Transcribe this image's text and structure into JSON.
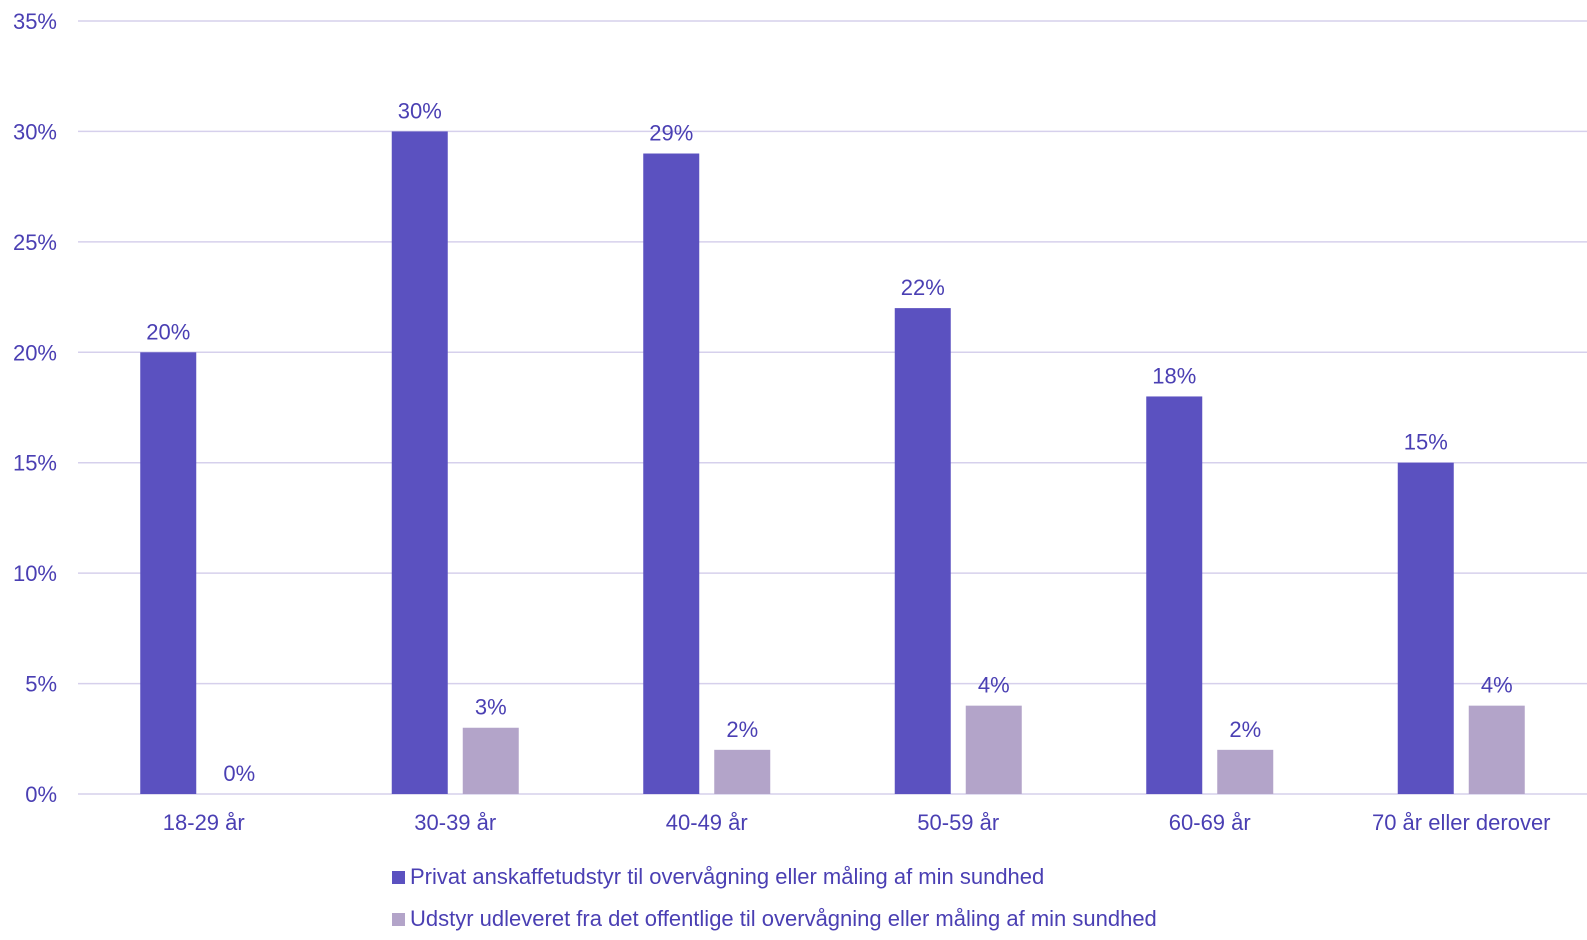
{
  "chart_data": {
    "type": "bar",
    "categories": [
      "18-29 år",
      "30-39 år",
      "40-49 år",
      "50-59 år",
      "60-69 år",
      "70 år eller derover"
    ],
    "series": [
      {
        "name": "Privat anskaffetudstyr til overvågning eller måling af min sundhed",
        "values": [
          20,
          30,
          29,
          22,
          18,
          15
        ],
        "labels": [
          "20%",
          "30%",
          "29%",
          "22%",
          "18%",
          "15%"
        ],
        "color": "#5b51c0"
      },
      {
        "name": "Udstyr udleveret fra det offentlige til overvågning eller måling af min sundhed",
        "values": [
          0,
          3,
          2,
          4,
          2,
          4
        ],
        "labels": [
          "0%",
          "3%",
          "2%",
          "4%",
          "2%",
          "4%"
        ],
        "color": "#b3a4c9"
      }
    ],
    "yticks": [
      "0%",
      "5%",
      "10%",
      "15%",
      "20%",
      "25%",
      "30%",
      "35%"
    ],
    "ylim": [
      0,
      35
    ],
    "grid": true,
    "gridcolor": "#d6d0ec",
    "textcolor": "#4a3fb3",
    "legend_position": "bottom"
  }
}
